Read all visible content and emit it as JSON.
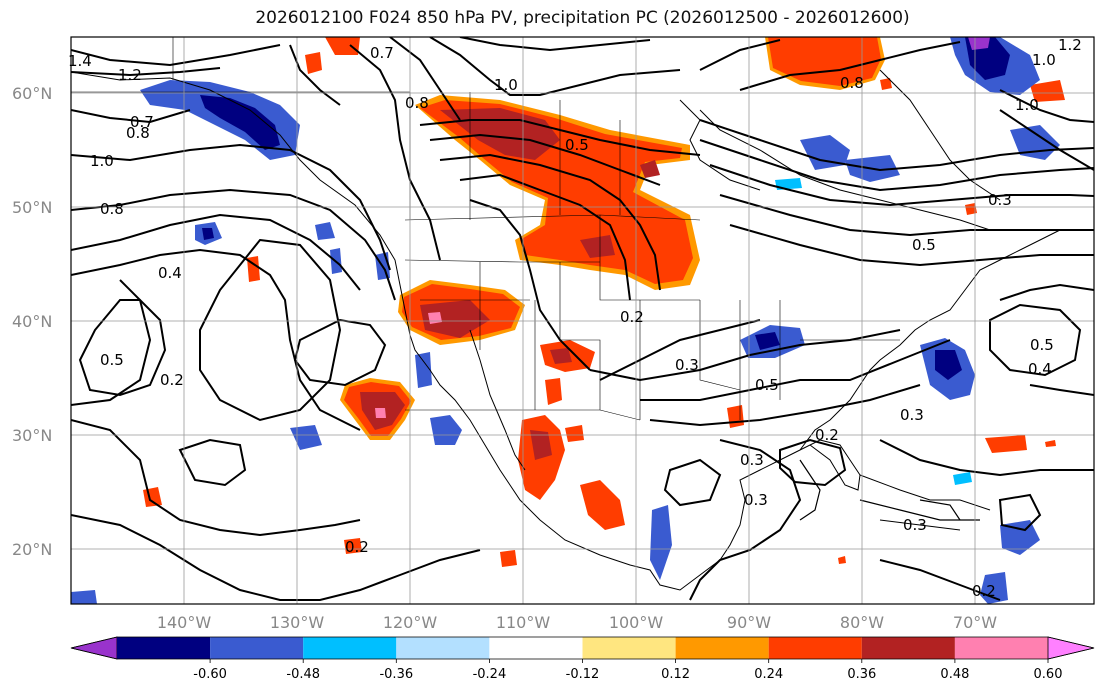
{
  "title": "2026012100 F024 850 hPa PV, precipitation PC (2026012500 - 2026012600)",
  "map": {
    "lat_labels": [
      "60°N",
      "50°N",
      "40°N",
      "30°N",
      "20°N"
    ],
    "lon_labels": [
      "140°W",
      "130°W",
      "120°W",
      "110°W",
      "100°W",
      "90°W",
      "80°W",
      "70°W"
    ],
    "contour_labels": [
      "1.4",
      "1.2",
      "0.7",
      "0.8",
      "1.0",
      "0.8",
      "0.4",
      "0.5",
      "0.2",
      "0.8",
      "1.0",
      "0.5",
      "0.2",
      "0.3",
      "0.5",
      "0.3",
      "0.2",
      "0.3",
      "0.3",
      "0.5",
      "0.4",
      "0.3",
      "0.2",
      "1.0",
      "0.8",
      "0.7",
      "1.2",
      "1.0",
      "0.3",
      "0.5",
      "0.2"
    ]
  },
  "colorbar": {
    "ticks": [
      "-0.60",
      "-0.48",
      "-0.36",
      "-0.24",
      "-0.12",
      "0.12",
      "0.24",
      "0.36",
      "0.48",
      "0.60"
    ],
    "colors": [
      "#9933cc",
      "#000080",
      "#3a5bd0",
      "#00bfff",
      "#b3e0ff",
      "#ffffff",
      "#ffe680",
      "#ff9900",
      "#ff3d00",
      "#b22222",
      "#ff80b0",
      "#ff80ff"
    ]
  }
}
